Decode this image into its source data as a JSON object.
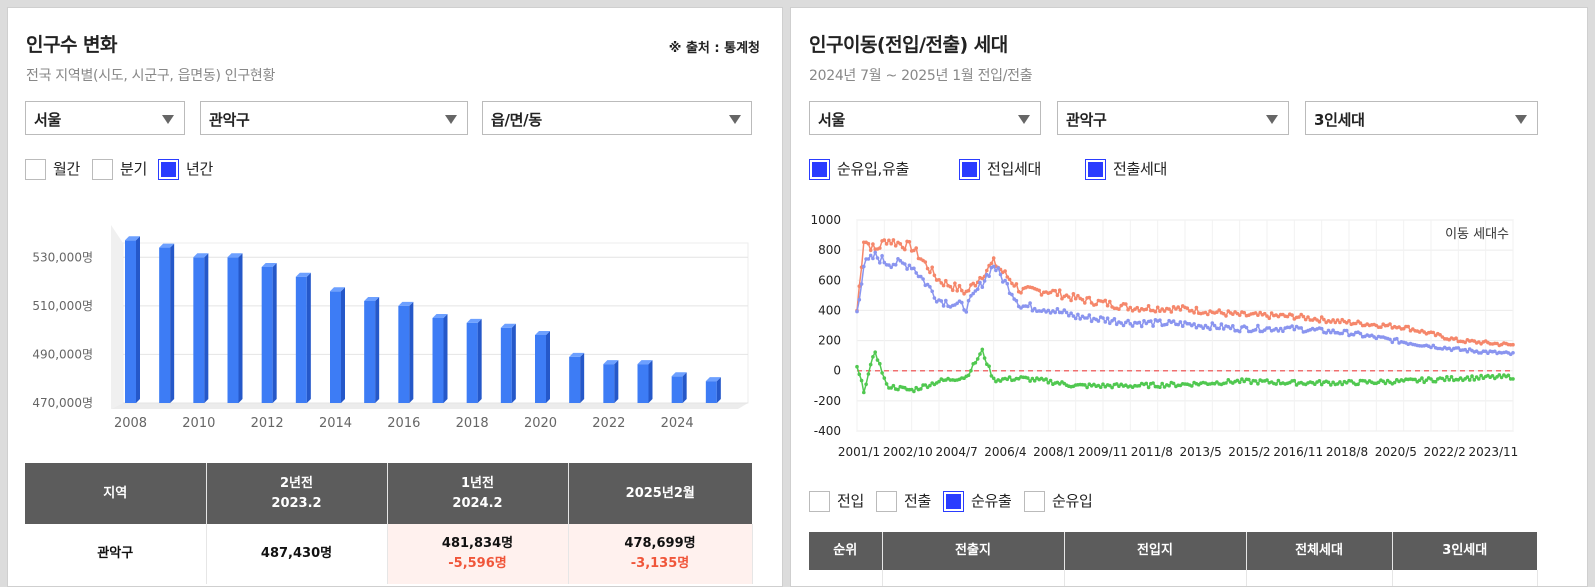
{
  "left": {
    "title": "인구수 변화",
    "subtitle": "전국 지역별(시도, 시군구, 읍면동) 인구현황",
    "source": "※ 출처 : 통계청",
    "selects": [
      "서울",
      "관악구",
      "읍/면/동"
    ],
    "period_options": [
      {
        "label": "월간",
        "checked": false
      },
      {
        "label": "분기",
        "checked": false
      },
      {
        "label": "년간",
        "checked": true
      }
    ],
    "table": {
      "headers": [
        [
          "지역"
        ],
        [
          "2년전",
          "2023.2"
        ],
        [
          "1년전",
          "2024.2"
        ],
        [
          "2025년2월"
        ]
      ],
      "row": {
        "region": "관악구",
        "two_years": "487,430명",
        "one_year": "481,834명",
        "one_year_change": "-5,596명",
        "current": "478,699명",
        "current_change": "-3,135명"
      }
    }
  },
  "right": {
    "title": "인구이동(전입/전출) 세대",
    "subtitle": "2024년 7월 ~ 2025년 1월 전입/전출",
    "selects": [
      "서울",
      "관악구",
      "3인세대"
    ],
    "series_toggles": [
      {
        "label": "순유입,유출",
        "checked": true
      },
      {
        "label": "전입세대",
        "checked": true
      },
      {
        "label": "전출세대",
        "checked": true
      }
    ],
    "view_options": [
      {
        "label": "전입",
        "checked": false
      },
      {
        "label": "전출",
        "checked": false
      },
      {
        "label": "순유출",
        "checked": true
      },
      {
        "label": "순유입",
        "checked": false
      }
    ],
    "table_headers": [
      "순위",
      "전출지",
      "전입지",
      "전체세대",
      "3인세대"
    ]
  },
  "chart_data": [
    {
      "type": "bar",
      "categories": [
        "2008",
        "2009",
        "2010",
        "2011",
        "2012",
        "2013",
        "2014",
        "2015",
        "2016",
        "2017",
        "2018",
        "2019",
        "2020",
        "2021",
        "2022",
        "2023",
        "2024",
        "2025"
      ],
      "x_tick_labels": [
        "2008",
        "2010",
        "2012",
        "2014",
        "2016",
        "2018",
        "2020",
        "2022",
        "2024"
      ],
      "values": [
        537000,
        534000,
        530000,
        530000,
        526000,
        522000,
        516000,
        512000,
        510000,
        505000,
        503000,
        501000,
        498000,
        489000,
        486000,
        486000,
        481000,
        479000
      ],
      "y_tick_labels": [
        "530,000명",
        "510,000명",
        "490,000명",
        "470,000명"
      ],
      "y_ticks": [
        530000,
        510000,
        490000,
        470000
      ],
      "ylim": [
        470000,
        540000
      ],
      "colors": {
        "bar": "#3d7cf5",
        "bar_side": "#2558c9",
        "bar_top": "#6da0ff"
      }
    },
    {
      "type": "line",
      "annotation": "이동 세대수",
      "x_tick_labels": [
        "2001/1",
        "2002/10",
        "2004/7",
        "2006/4",
        "2008/1",
        "2009/11",
        "2011/8",
        "2013/5",
        "2015/2",
        "2016/11",
        "2018/8",
        "2020/5",
        "2022/2",
        "2023/11"
      ],
      "y_ticks": [
        1000,
        800,
        600,
        400,
        200,
        0,
        -200,
        -400
      ],
      "ylim": [
        -400,
        1000
      ],
      "x_range": [
        "2001/1",
        "2025/1"
      ],
      "num_points": 289,
      "series": [
        {
          "name": "전입세대",
          "color": "#f5876b",
          "anchors": [
            [
              0,
              400
            ],
            [
              3,
              870
            ],
            [
              8,
              800
            ],
            [
              13,
              870
            ],
            [
              24,
              820
            ],
            [
              36,
              600
            ],
            [
              48,
              520
            ],
            [
              60,
              720
            ],
            [
              72,
              530
            ],
            [
              84,
              530
            ],
            [
              96,
              480
            ],
            [
              120,
              420
            ],
            [
              144,
              410
            ],
            [
              168,
              370
            ],
            [
              192,
              360
            ],
            [
              216,
              320
            ],
            [
              240,
              290
            ],
            [
              264,
              200
            ],
            [
              288,
              170
            ]
          ]
        },
        {
          "name": "전출세대",
          "color": "#8a95ef",
          "anchors": [
            [
              0,
              400
            ],
            [
              3,
              700
            ],
            [
              8,
              760
            ],
            [
              13,
              720
            ],
            [
              24,
              700
            ],
            [
              36,
              470
            ],
            [
              48,
              420
            ],
            [
              60,
              700
            ],
            [
              72,
              430
            ],
            [
              84,
              410
            ],
            [
              96,
              360
            ],
            [
              120,
              320
            ],
            [
              144,
              310
            ],
            [
              168,
              280
            ],
            [
              192,
              280
            ],
            [
              216,
              250
            ],
            [
              240,
              190
            ],
            [
              264,
              140
            ],
            [
              288,
              110
            ]
          ]
        },
        {
          "name": "순유입,유출",
          "color": "#50c850",
          "anchors": [
            [
              0,
              20
            ],
            [
              3,
              -130
            ],
            [
              8,
              130
            ],
            [
              13,
              -100
            ],
            [
              24,
              -130
            ],
            [
              36,
              -70
            ],
            [
              48,
              -40
            ],
            [
              55,
              130
            ],
            [
              60,
              -60
            ],
            [
              72,
              -50
            ],
            [
              84,
              -70
            ],
            [
              96,
              -100
            ],
            [
              120,
              -100
            ],
            [
              144,
              -90
            ],
            [
              168,
              -70
            ],
            [
              192,
              -80
            ],
            [
              216,
              -80
            ],
            [
              240,
              -70
            ],
            [
              264,
              -50
            ],
            [
              288,
              -40
            ]
          ]
        }
      ],
      "reference_line": {
        "y": 0,
        "color": "#f07070"
      }
    }
  ]
}
